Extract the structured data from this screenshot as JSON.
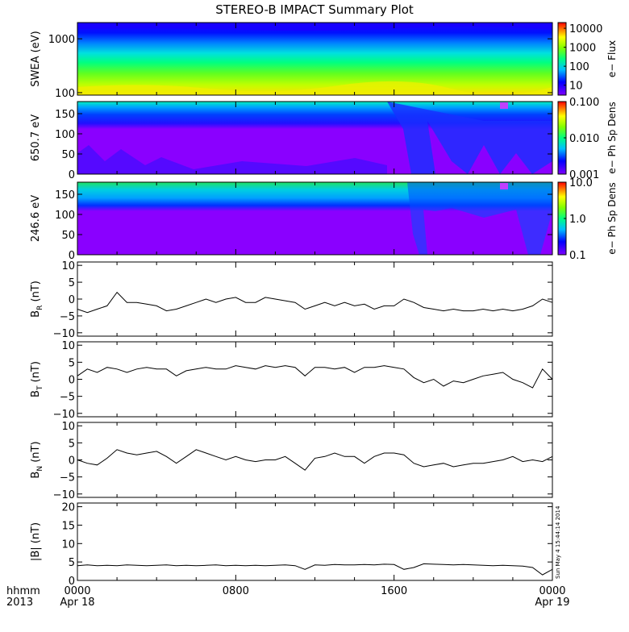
{
  "title": "STEREO-B IMPACT Summary Plot",
  "stamp": "Sun May  4 15:44:14 2014",
  "time_axis": {
    "label_top": "hhmm",
    "label_bottom": "2013",
    "ticks": [
      {
        "hours": 0,
        "top": "0000",
        "bottom": "Apr 18"
      },
      {
        "hours": 8,
        "top": "0800",
        "bottom": ""
      },
      {
        "hours": 16,
        "top": "1600",
        "bottom": ""
      },
      {
        "hours": 24,
        "top": "0000",
        "bottom": "Apr 19"
      }
    ],
    "range_hours": [
      0,
      24
    ]
  },
  "chart_data": [
    {
      "type": "heatmap",
      "ylabel": "SWEA (eV)",
      "yscale": "log",
      "ylim": [
        90,
        2000
      ],
      "yticks": [
        {
          "v": 100,
          "t": "100"
        },
        {
          "v": 1000,
          "t": "1000"
        }
      ],
      "colorbar": {
        "label": "e− Flux",
        "scale": "log",
        "range": [
          3,
          20000
        ],
        "ticks": [
          {
            "v": 10,
            "t": "10"
          },
          {
            "v": 100,
            "t": "100"
          },
          {
            "v": 1000,
            "t": "1000"
          },
          {
            "v": 10000,
            "t": "10000"
          }
        ]
      }
    },
    {
      "type": "heatmap",
      "ylabel": "650.7 eV",
      "ylim": [
        0,
        180
      ],
      "yticks": [
        {
          "v": 0,
          "t": "0"
        },
        {
          "v": 50,
          "t": "50"
        },
        {
          "v": 100,
          "t": "100"
        },
        {
          "v": 150,
          "t": "150"
        }
      ],
      "colorbar": {
        "label": "e− Ph Sp Dens",
        "scale": "log",
        "range": [
          0.001,
          0.1
        ],
        "ticks": [
          {
            "v": 0.001,
            "t": "0.001"
          },
          {
            "v": 0.01,
            "t": "0.010"
          },
          {
            "v": 0.1,
            "t": "0.100"
          }
        ]
      }
    },
    {
      "type": "heatmap",
      "ylabel": "246.6 eV",
      "ylim": [
        0,
        180
      ],
      "yticks": [
        {
          "v": 0,
          "t": "0"
        },
        {
          "v": 50,
          "t": "50"
        },
        {
          "v": 100,
          "t": "100"
        },
        {
          "v": 150,
          "t": "150"
        }
      ],
      "colorbar": {
        "label": "e− Ph Sp Dens",
        "scale": "log",
        "range": [
          0.1,
          10
        ],
        "ticks": [
          {
            "v": 0.1,
            "t": "0.1"
          },
          {
            "v": 1,
            "t": "1.0"
          },
          {
            "v": 10,
            "t": "10.0"
          }
        ]
      }
    },
    {
      "type": "line",
      "ylabel_main": "B",
      "ylabel_sub": "R",
      "ylabel_unit": " (nT)",
      "ylim": [
        -11,
        11
      ],
      "yticks": [
        {
          "v": -10,
          "t": "−10"
        },
        {
          "v": -5,
          "t": "−5"
        },
        {
          "v": 0,
          "t": "0"
        },
        {
          "v": 5,
          "t": "5"
        },
        {
          "v": 10,
          "t": "10"
        }
      ],
      "x": [
        0,
        0.5,
        1,
        1.5,
        2,
        2.5,
        3,
        3.5,
        4,
        4.5,
        5,
        5.5,
        6,
        6.5,
        7,
        7.5,
        8,
        8.5,
        9,
        9.5,
        10,
        10.5,
        11,
        11.5,
        12,
        12.5,
        13,
        13.5,
        14,
        14.5,
        15,
        15.5,
        16,
        16.5,
        17,
        17.5,
        18,
        18.5,
        19,
        19.5,
        20,
        20.5,
        21,
        21.5,
        22,
        22.5,
        23,
        23.5,
        24
      ],
      "y": [
        -3,
        -4,
        -3,
        -2,
        2,
        -1,
        -1,
        -1.5,
        -2,
        -3.5,
        -3,
        -2,
        -1,
        0,
        -1,
        0,
        0.5,
        -1,
        -1,
        0.5,
        0,
        -0.5,
        -1,
        -3,
        -2,
        -1,
        -2,
        -1,
        -2,
        -1.5,
        -3,
        -2,
        -2,
        0,
        -1,
        -2.5,
        -3,
        -3.5,
        -3,
        -3.5,
        -3.5,
        -3,
        -3.5,
        -3,
        -3.5,
        -3,
        -2,
        0,
        -1
      ]
    },
    {
      "type": "line",
      "ylabel_main": "B",
      "ylabel_sub": "T",
      "ylabel_unit": " (nT)",
      "ylim": [
        -11,
        11
      ],
      "yticks": [
        {
          "v": -10,
          "t": "−10"
        },
        {
          "v": -5,
          "t": "−5"
        },
        {
          "v": 0,
          "t": "0"
        },
        {
          "v": 5,
          "t": "5"
        },
        {
          "v": 10,
          "t": "10"
        }
      ],
      "x": [
        0,
        0.5,
        1,
        1.5,
        2,
        2.5,
        3,
        3.5,
        4,
        4.5,
        5,
        5.5,
        6,
        6.5,
        7,
        7.5,
        8,
        8.5,
        9,
        9.5,
        10,
        10.5,
        11,
        11.5,
        12,
        12.5,
        13,
        13.5,
        14,
        14.5,
        15,
        15.5,
        16,
        16.5,
        17,
        17.5,
        18,
        18.5,
        19,
        19.5,
        20,
        20.5,
        21,
        21.5,
        22,
        22.5,
        23,
        23.5,
        24
      ],
      "y": [
        1,
        3,
        2,
        3.5,
        3,
        2,
        3,
        3.5,
        3,
        3,
        1,
        2.5,
        3,
        3.5,
        3,
        3,
        4,
        3.5,
        3,
        4,
        3.5,
        4,
        3.5,
        1,
        3.5,
        3.5,
        3,
        3.5,
        2,
        3.5,
        3.5,
        4,
        3.5,
        3,
        0.5,
        -1,
        0,
        -2,
        -0.5,
        -1,
        0,
        1,
        1.5,
        2,
        0,
        -1,
        -2.5,
        3,
        0
      ]
    },
    {
      "type": "line",
      "ylabel_main": "B",
      "ylabel_sub": "N",
      "ylabel_unit": " (nT)",
      "ylim": [
        -11,
        11
      ],
      "yticks": [
        {
          "v": -10,
          "t": "−10"
        },
        {
          "v": -5,
          "t": "−5"
        },
        {
          "v": 0,
          "t": "0"
        },
        {
          "v": 5,
          "t": "5"
        },
        {
          "v": 10,
          "t": "10"
        }
      ],
      "x": [
        0,
        0.5,
        1,
        1.5,
        2,
        2.5,
        3,
        3.5,
        4,
        4.5,
        5,
        5.5,
        6,
        6.5,
        7,
        7.5,
        8,
        8.5,
        9,
        9.5,
        10,
        10.5,
        11,
        11.5,
        12,
        12.5,
        13,
        13.5,
        14,
        14.5,
        15,
        15.5,
        16,
        16.5,
        17,
        17.5,
        18,
        18.5,
        19,
        19.5,
        20,
        20.5,
        21,
        21.5,
        22,
        22.5,
        23,
        23.5,
        24
      ],
      "y": [
        0,
        -1,
        -1.5,
        0.5,
        3,
        2,
        1.5,
        2,
        2.5,
        1,
        -1,
        1,
        3,
        2,
        1,
        0,
        1,
        0,
        -0.5,
        0,
        0,
        1,
        -1,
        -3,
        0.5,
        1,
        2,
        1,
        1,
        -1,
        1,
        2,
        2,
        1.5,
        -1,
        -2,
        -1.5,
        -1,
        -2,
        -1.5,
        -1,
        -1,
        -0.5,
        0,
        1,
        -0.5,
        0,
        -0.5,
        1
      ]
    },
    {
      "type": "line",
      "ylabel": "|B| (nT)",
      "ylim": [
        0,
        21
      ],
      "yticks": [
        {
          "v": 0,
          "t": "0"
        },
        {
          "v": 5,
          "t": "5"
        },
        {
          "v": 10,
          "t": "10"
        },
        {
          "v": 15,
          "t": "15"
        },
        {
          "v": 20,
          "t": "20"
        }
      ],
      "x": [
        0,
        0.5,
        1,
        1.5,
        2,
        2.5,
        3,
        3.5,
        4,
        4.5,
        5,
        5.5,
        6,
        6.5,
        7,
        7.5,
        8,
        8.5,
        9,
        9.5,
        10,
        10.5,
        11,
        11.5,
        12,
        12.5,
        13,
        13.5,
        14,
        14.5,
        15,
        15.5,
        16,
        16.5,
        17,
        17.5,
        18,
        18.5,
        19,
        19.5,
        20,
        20.5,
        21,
        21.5,
        22,
        22.5,
        23,
        23.5,
        24
      ],
      "y": [
        4,
        4.2,
        4,
        4.1,
        4,
        4.2,
        4.1,
        4,
        4.1,
        4.2,
        4,
        4.1,
        4,
        4.1,
        4.2,
        4,
        4.1,
        4,
        4.1,
        4,
        4.1,
        4.2,
        4,
        3,
        4.2,
        4.1,
        4.3,
        4.2,
        4.2,
        4.3,
        4.2,
        4.4,
        4.3,
        3,
        3.5,
        4.5,
        4.4,
        4.3,
        4.2,
        4.3,
        4.2,
        4.1,
        4,
        4.1,
        4,
        3.9,
        3.5,
        1.5,
        3
      ]
    }
  ]
}
